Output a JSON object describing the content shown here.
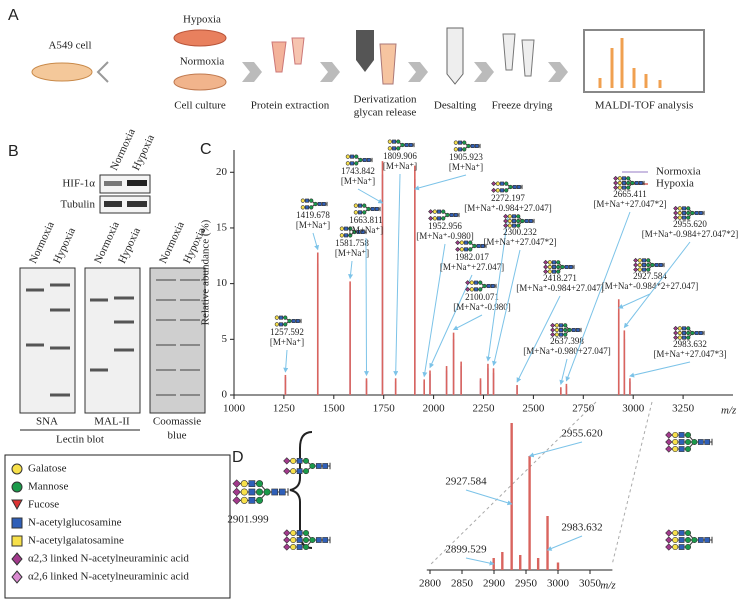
{
  "panel_labels": [
    "A",
    "B",
    "C",
    "D"
  ],
  "workflow": {
    "cell": "A549 cell",
    "conditions": [
      "Hypoxia",
      "Normoxia"
    ],
    "steps": [
      [
        "Cell culture"
      ],
      [
        "Protein extraction"
      ],
      [
        "Derivatization",
        "glycan release"
      ],
      [
        "Desalting"
      ],
      [
        "Freeze drying"
      ],
      [
        "MALDI-TOF analysis"
      ]
    ]
  },
  "western": {
    "conditions": [
      "Normoxia",
      "Hypoxia"
    ],
    "rows": [
      "HIF-1α",
      "Tubulin"
    ]
  },
  "lectin": {
    "conditions": [
      "Normoxia",
      "Hypoxia"
    ],
    "blots": [
      [
        "SNA"
      ],
      [
        "MAL-II"
      ],
      [
        "Coomassie",
        "blue"
      ]
    ],
    "group": "Lectin blot"
  },
  "legend": [
    "Galatose",
    "Mannose",
    "Fucose",
    "N-acetylglucosamine",
    "N-acetylgalatosamine",
    "α2,3 linked N-acetylneuraminic acid",
    "α2,6 linked N-acetylneuraminic acid"
  ],
  "chart_data": [
    {
      "type": "spectrum",
      "xlabel": "m/z",
      "ylabel": "Relative abundance (%)",
      "xlim": [
        1000,
        3500
      ],
      "xticks": [
        1000,
        1250,
        1500,
        1750,
        2000,
        2250,
        2500,
        2750,
        3000,
        3250
      ],
      "ylim": [
        0,
        22
      ],
      "yticks": [
        0,
        5,
        10,
        15,
        20
      ],
      "legend": "upper right",
      "series": [
        {
          "name": "Normoxia",
          "color": "#b9a7d8",
          "x": [
            1257.592,
            1419.678,
            1581.758,
            1663.811,
            1743.842,
            1809.906,
            1905.923,
            1952.956,
            1982.017,
            2065,
            2100.071,
            2138,
            2235,
            2272.197,
            2300.232,
            2418.271,
            2637.398,
            2665.411,
            2927.584,
            2955.62,
            2983.632
          ],
          "values": [
            1.6,
            11.8,
            9.4,
            1.3,
            19.8,
            1.2,
            19.4,
            1.2,
            1.9,
            2.2,
            5.0,
            2.6,
            1.3,
            2.4,
            2.0,
            0.8,
            0.6,
            0.8,
            7.4,
            5.0,
            1.2
          ]
        },
        {
          "name": "Hypoxia",
          "color": "#d9645e",
          "x": [
            1257.592,
            1419.678,
            1581.758,
            1663.811,
            1743.842,
            1809.906,
            1905.923,
            1952.956,
            1982.017,
            2065,
            2100.071,
            2138,
            2235,
            2272.197,
            2300.232,
            2418.271,
            2637.398,
            2665.411,
            2927.584,
            2955.62,
            2983.632
          ],
          "values": [
            1.8,
            12.8,
            10.2,
            1.5,
            21.0,
            1.5,
            20.6,
            1.4,
            2.2,
            2.6,
            5.6,
            3.0,
            1.5,
            2.8,
            2.4,
            0.9,
            0.7,
            1.0,
            8.6,
            5.8,
            1.5
          ],
          "peak_labels": [
            "1257.592",
            "1419.678",
            "1581.758",
            "1663.811",
            "1743.842",
            "1809.906",
            "1905.923",
            "1952.956",
            "1982.017",
            null,
            "2100.071",
            null,
            null,
            "2272.197",
            "2300.232",
            "2418.271",
            "2637.398",
            "2665.411",
            "2927.584",
            "2955.620",
            "2983.632"
          ],
          "adducts": [
            "[M+Na⁺]",
            "[M+Na⁺]",
            "[M+Na⁺]",
            "[M+Na⁺]",
            "[M+Na⁺]",
            "[M+Na⁺]",
            "[M+Na⁺]",
            "[M+Na⁺-0.980]",
            "[M+Na⁺+27.047]",
            null,
            "[M+Na⁺-0.980]",
            null,
            null,
            "[M+Na⁺-0.984+27.047]",
            "[M+Na⁺+27.047*2]",
            "[M+Na⁺-0.984+27.047]",
            "[M+Na⁺-0.980+27.047]",
            "[M+Na⁺+27.047*2]",
            "[M+Na⁺-0.984*2+27.047]",
            "[M+Na⁺-0.984+27.047*2]",
            "[M+Na⁺+27.047*3]"
          ]
        }
      ]
    },
    {
      "type": "spectrum",
      "xlabel": "m/z",
      "xlim": [
        2795,
        3085
      ],
      "xticks": [
        2800,
        2850,
        2900,
        2950,
        3000,
        3050
      ],
      "ylim": [
        0,
        100
      ],
      "annotations": [
        "2901.999"
      ],
      "series": [
        {
          "color": "#d9645e",
          "x": [
            2899.529,
            2913,
            2927.584,
            2941,
            2955.62,
            2969,
            2983.632,
            3000
          ],
          "values": [
            8,
            12,
            98,
            10,
            76,
            8,
            36,
            5
          ],
          "peak_labels": [
            "2899.529",
            null,
            "2927.584",
            null,
            "2955.620",
            null,
            "2983.632",
            null
          ]
        }
      ]
    }
  ]
}
